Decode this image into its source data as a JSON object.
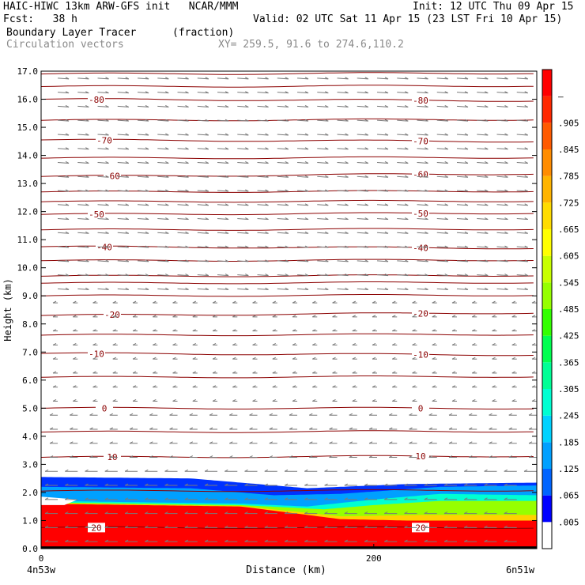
{
  "header": {
    "model_line": "HAIC-HIWC 13km ARW-GFS init   NCAR/MMM",
    "init": "Init: 12 UTC Thu 09 Apr 15",
    "fcst": "Fcst:   38 h",
    "valid": "Valid: 02 UTC Sat 11 Apr 15 (23 LST Fri 10 Apr 15)",
    "field_name": "Boundary Layer Tracer",
    "field_units": "(fraction)",
    "vectors": "Circulation vectors",
    "xy": "XY= 259.5, 91.6 to 274.6,110.2"
  },
  "chart_data": {
    "type": "heatmap",
    "title": "Boundary Layer Tracer (fraction)",
    "xlabel": "Distance (km)",
    "ylabel": "Height (km)",
    "xlim": [
      0,
      298
    ],
    "ylim": [
      0,
      17
    ],
    "x_ticks": [
      "0",
      "200"
    ],
    "x_end_labels": {
      "left": "4n53w",
      "right": "6n51w"
    },
    "y_ticks": [
      "0.0",
      "1.0",
      "2.0",
      "3.0",
      "4.0",
      "5.0",
      "6.0",
      "7.0",
      "8.0",
      "9.0",
      "10.0",
      "11.0",
      "12.0",
      "13.0",
      "14.0",
      "15.0",
      "16.0",
      "17.0"
    ],
    "colorbar": {
      "labels": [
        ".005",
        ".065",
        ".125",
        ".185",
        ".245",
        ".305",
        ".365",
        ".425",
        ".485",
        ".545",
        ".605",
        ".665",
        ".725",
        ".785",
        ".845",
        ".905",
        "–"
      ],
      "colors": [
        "#ffffff",
        "#0000ff",
        "#0064ff",
        "#00a0ff",
        "#00d2ff",
        "#00ffd2",
        "#00ff96",
        "#00ff50",
        "#32ff00",
        "#96ff00",
        "#c8ff00",
        "#ffff00",
        "#ffdc00",
        "#ffb400",
        "#ff8c00",
        "#ff5a00",
        "#ff2800",
        "#ff0000"
      ]
    },
    "tracer_layers": [
      {
        "level": 0.95,
        "color": "#ff0000",
        "top": [
          [
            0,
            1.6
          ],
          [
            60,
            1.55
          ],
          [
            120,
            1.5
          ],
          [
            180,
            1.05
          ],
          [
            220,
            1.0
          ],
          [
            298,
            1.0
          ]
        ]
      },
      {
        "level": 0.7,
        "color": "#ffd200",
        "top": [
          [
            0,
            1.62
          ],
          [
            60,
            1.57
          ],
          [
            120,
            1.52
          ],
          [
            180,
            1.15
          ],
          [
            230,
            1.2
          ],
          [
            298,
            1.2
          ]
        ]
      },
      {
        "level": 0.5,
        "color": "#96ff00",
        "top": [
          [
            0,
            1.65
          ],
          [
            120,
            1.55
          ],
          [
            170,
            1.4
          ],
          [
            200,
            1.55
          ],
          [
            240,
            1.7
          ],
          [
            298,
            1.7
          ]
        ]
      },
      {
        "level": 0.3,
        "color": "#00ffd2",
        "top": [
          [
            0,
            1.7
          ],
          [
            120,
            1.6
          ],
          [
            160,
            1.5
          ],
          [
            200,
            1.75
          ],
          [
            240,
            1.95
          ],
          [
            298,
            1.9
          ]
        ]
      },
      {
        "level": 0.15,
        "color": "#00a0ff",
        "top": [
          [
            0,
            2.2
          ],
          [
            90,
            2.15
          ],
          [
            140,
            1.9
          ],
          [
            180,
            1.95
          ],
          [
            240,
            2.2
          ],
          [
            298,
            2.25
          ]
        ]
      },
      {
        "level": 0.05,
        "color": "#0032ff",
        "top": [
          [
            0,
            2.55
          ],
          [
            90,
            2.5
          ],
          [
            160,
            2.15
          ],
          [
            220,
            2.3
          ],
          [
            298,
            2.35
          ]
        ]
      }
    ],
    "isotherms": [
      {
        "label": "-80",
        "y": [
          16.0,
          15.95
        ],
        "label_x": [
          96,
          380
        ]
      },
      {
        "label": "-70",
        "y": [
          14.55,
          14.5
        ],
        "label_x": [
          96,
          380
        ]
      },
      {
        "label": "-60",
        "y": [
          13.25,
          13.35
        ],
        "label_x": [
          86,
          380
        ]
      },
      {
        "label": "-50",
        "y": [
          11.9,
          11.95
        ],
        "label_x": [
          52,
          380
        ]
      },
      {
        "label": "-40",
        "y": [
          10.75,
          10.7
        ],
        "label_x": [
          52,
          380
        ]
      },
      {
        "label": "-20",
        "y": [
          8.3,
          8.4
        ],
        "label_x": [
          62,
          380
        ]
      },
      {
        "label": "-10",
        "y": [
          6.95,
          6.9
        ],
        "label_x": [
          62,
          380
        ]
      },
      {
        "label": "0",
        "y": [
          5.0,
          5.0
        ],
        "label_x": [
          62,
          380
        ]
      },
      {
        "label": "10",
        "y": [
          3.25,
          3.3
        ],
        "label_x": [
          62,
          380
        ]
      },
      {
        "label": "20",
        "y": [
          0.75,
          0.75
        ],
        "label_x": [
          62,
          380
        ]
      }
    ],
    "unlabeled_contours": [
      16.9,
      16.45,
      15.25,
      13.9,
      12.7,
      12.35,
      11.35,
      10.25,
      9.7,
      9.45,
      9.0,
      7.6,
      6.1,
      4.15,
      2.05
    ]
  }
}
